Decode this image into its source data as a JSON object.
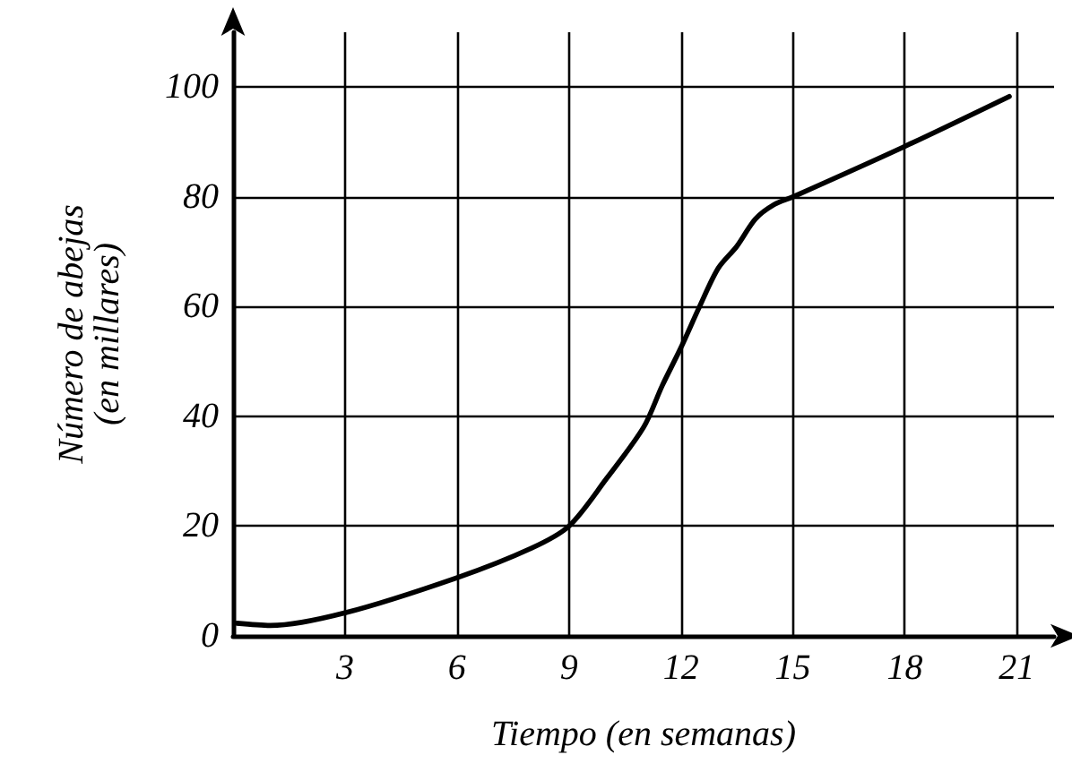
{
  "chart_data": {
    "type": "line",
    "xlabel": "Tiempo (en semanas)",
    "ylabel": "Número de abejas\n(en millares)",
    "x": [
      0.1,
      1,
      3,
      6,
      8,
      9,
      10,
      11,
      11.5,
      12,
      12.5,
      13,
      13.5,
      14,
      14.5,
      15,
      18,
      20.8
    ],
    "series": [
      {
        "color": "#000000",
        "values": [
          2.3,
          1.9,
          4.2,
          10.6,
          16,
          20,
          28.6,
          38,
          45.6,
          52.5,
          60,
          67,
          71,
          76,
          78.6,
          80,
          89.2,
          98.3
        ]
      }
    ],
    "xlim": [
      0,
      22
    ],
    "ylim": [
      0,
      110
    ],
    "xticks": [
      3,
      6,
      9,
      12,
      15,
      18,
      21
    ],
    "yticks": [
      0,
      20,
      40,
      60,
      80,
      100
    ],
    "grid": true,
    "marker": "none",
    "line_style": "solid"
  }
}
